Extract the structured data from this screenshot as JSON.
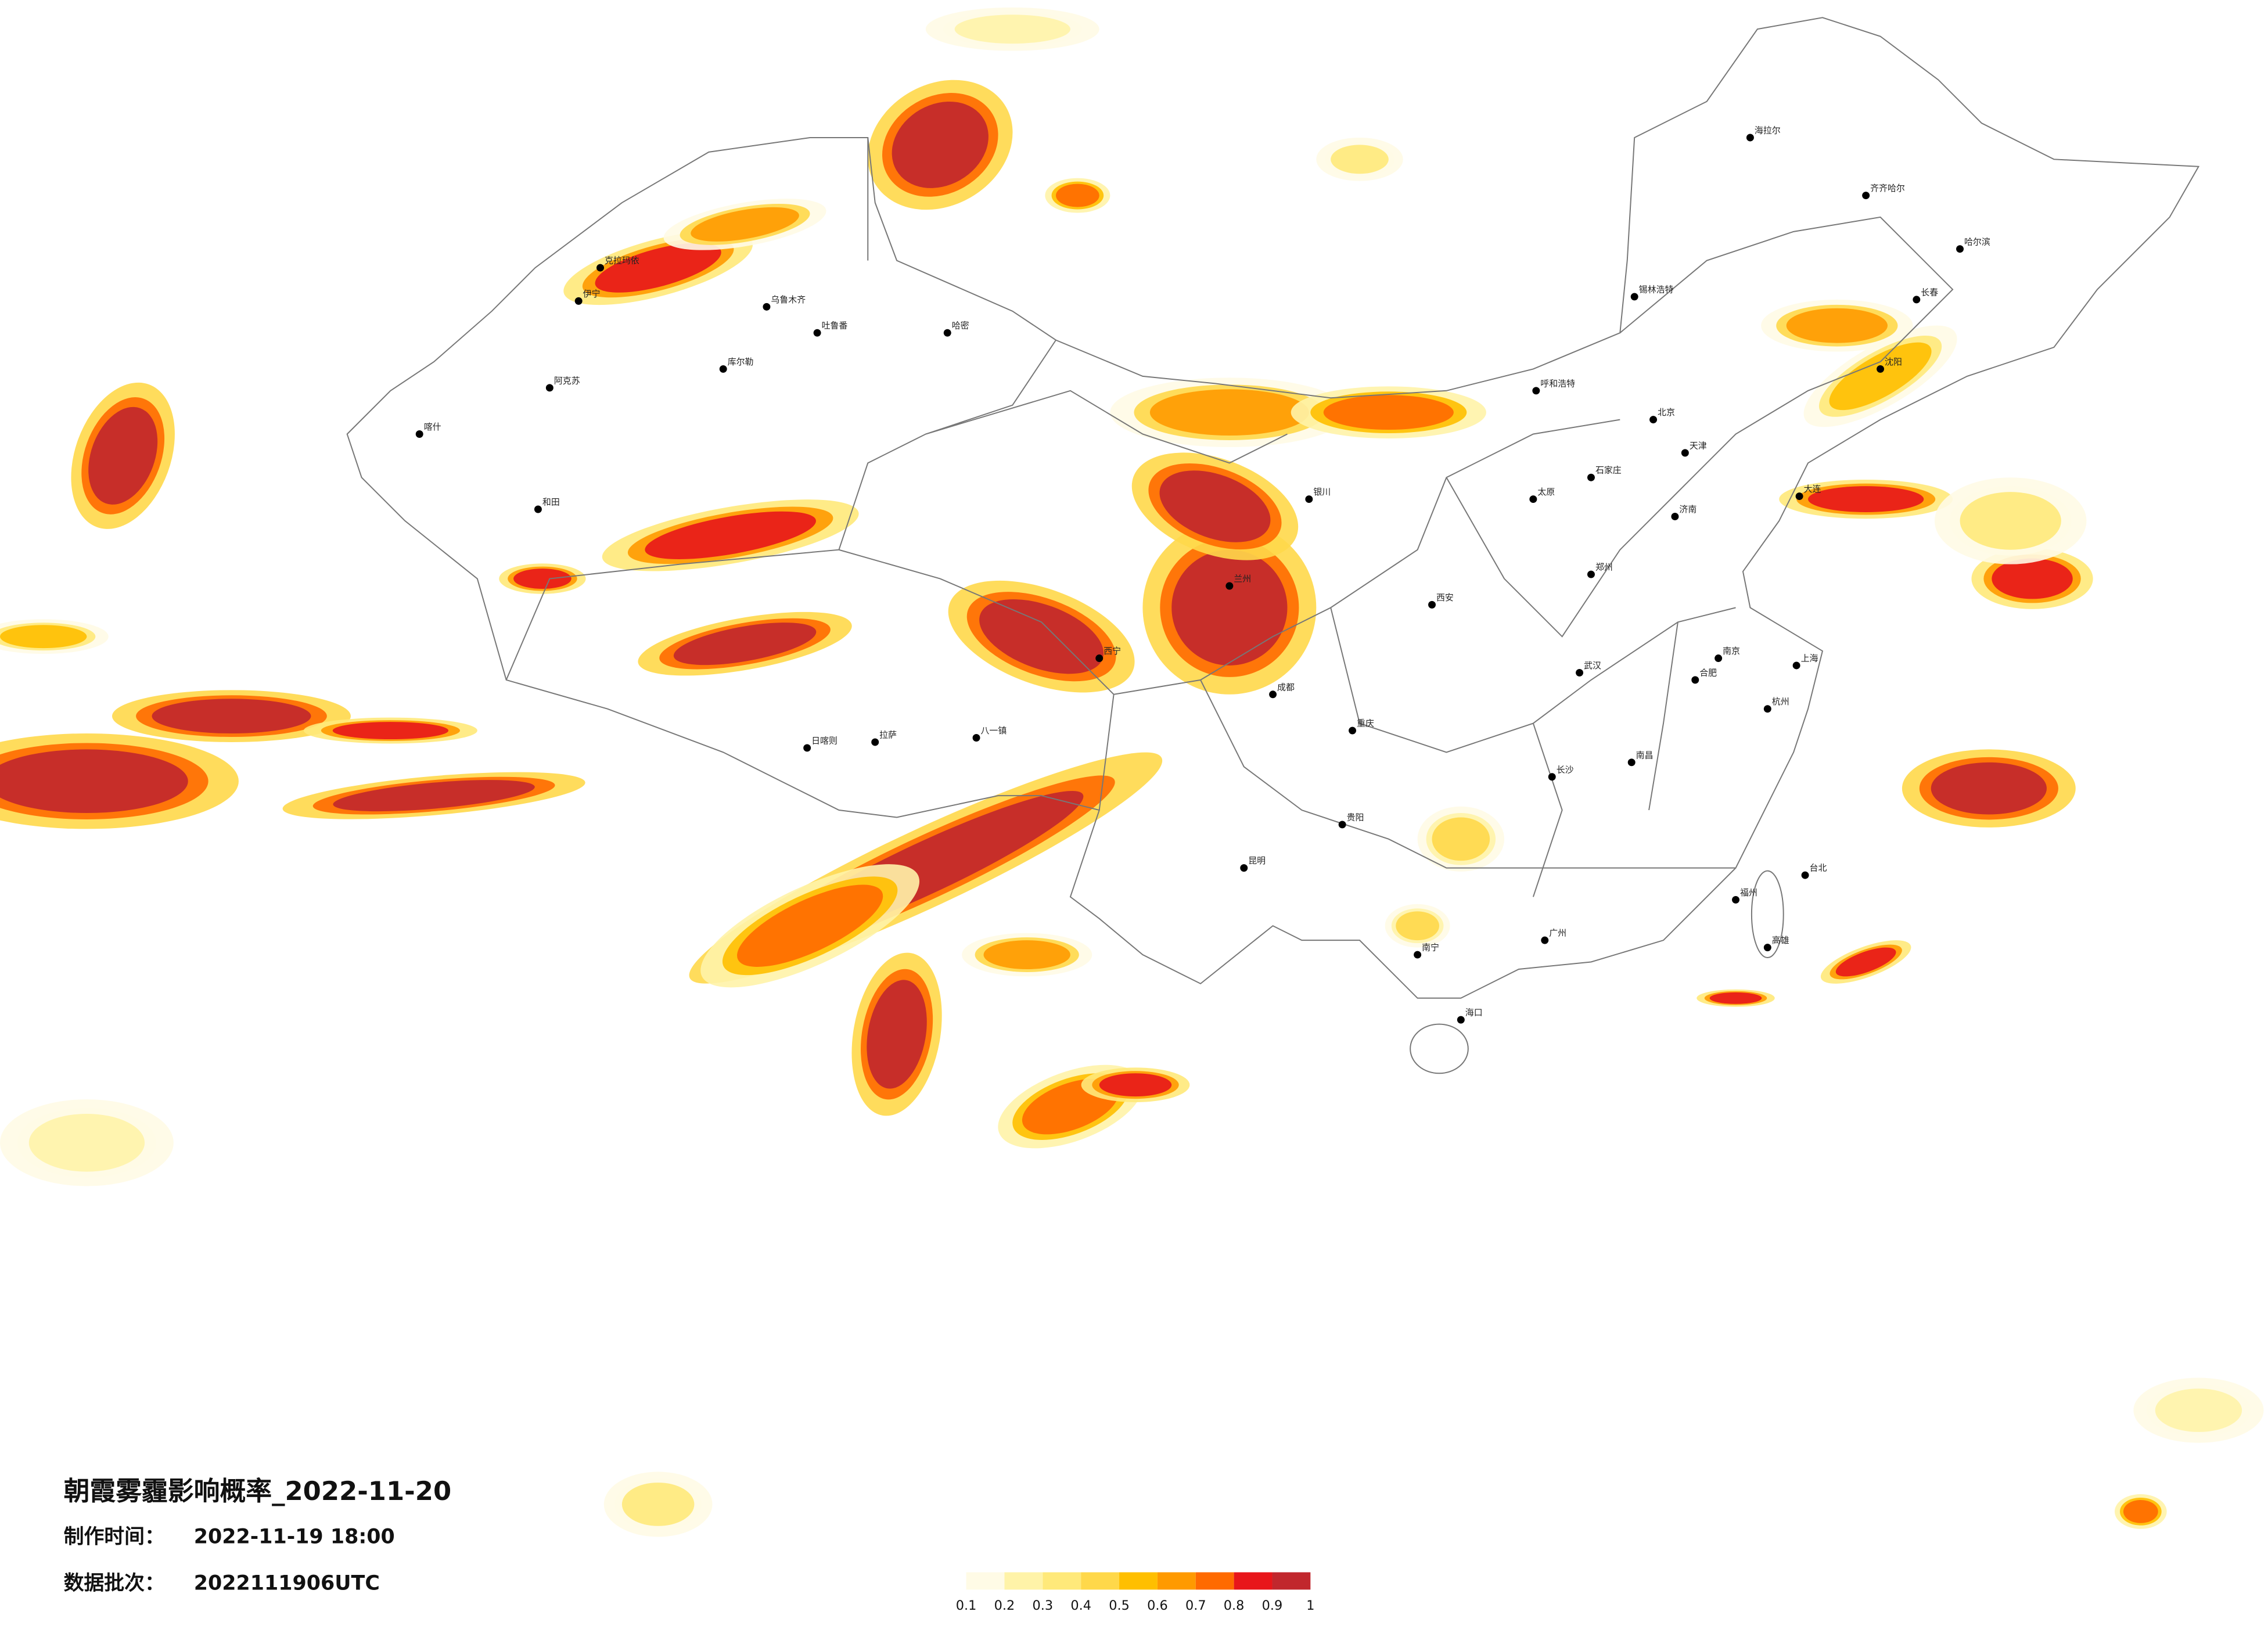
{
  "title": "朝霞雾霾影响概率_2022-11-20",
  "meta": [
    {
      "label": "制作时间：",
      "value": "2022-11-19 18:00"
    },
    {
      "label": "数据批次：",
      "value": "2022111906UTC"
    }
  ],
  "legend": {
    "colors": [
      "#fffbe6",
      "#fff3a8",
      "#ffe97a",
      "#ffd84a",
      "#ffbf00",
      "#ff9a00",
      "#ff6a00",
      "#e8161a",
      "#c1272d"
    ],
    "ticks": [
      0.1,
      0.2,
      0.3,
      0.4,
      0.5,
      0.6,
      0.7,
      0.8,
      0.9,
      1
    ]
  },
  "cities": [
    "乌鲁木齐",
    "喀什",
    "和田",
    "伊宁",
    "克拉玛依",
    "哈密",
    "阿克苏",
    "库尔勒",
    "吐鲁番",
    "日喀则",
    "拉萨",
    "八一镇",
    "西宁",
    "兰州",
    "银川",
    "呼和浩特",
    "锡林浩特",
    "北京",
    "天津",
    "石家庄",
    "太原",
    "济南",
    "郑州",
    "西安",
    "成都",
    "重庆",
    "贵阳",
    "昆明",
    "南宁",
    "广州",
    "海口",
    "长沙",
    "武汉",
    "南昌",
    "福州",
    "合肥",
    "南京",
    "上海",
    "杭州",
    "沈阳",
    "长春",
    "哈尔滨",
    "齐齐哈尔",
    "海拉尔",
    "大连",
    "台北",
    "高雄"
  ]
}
